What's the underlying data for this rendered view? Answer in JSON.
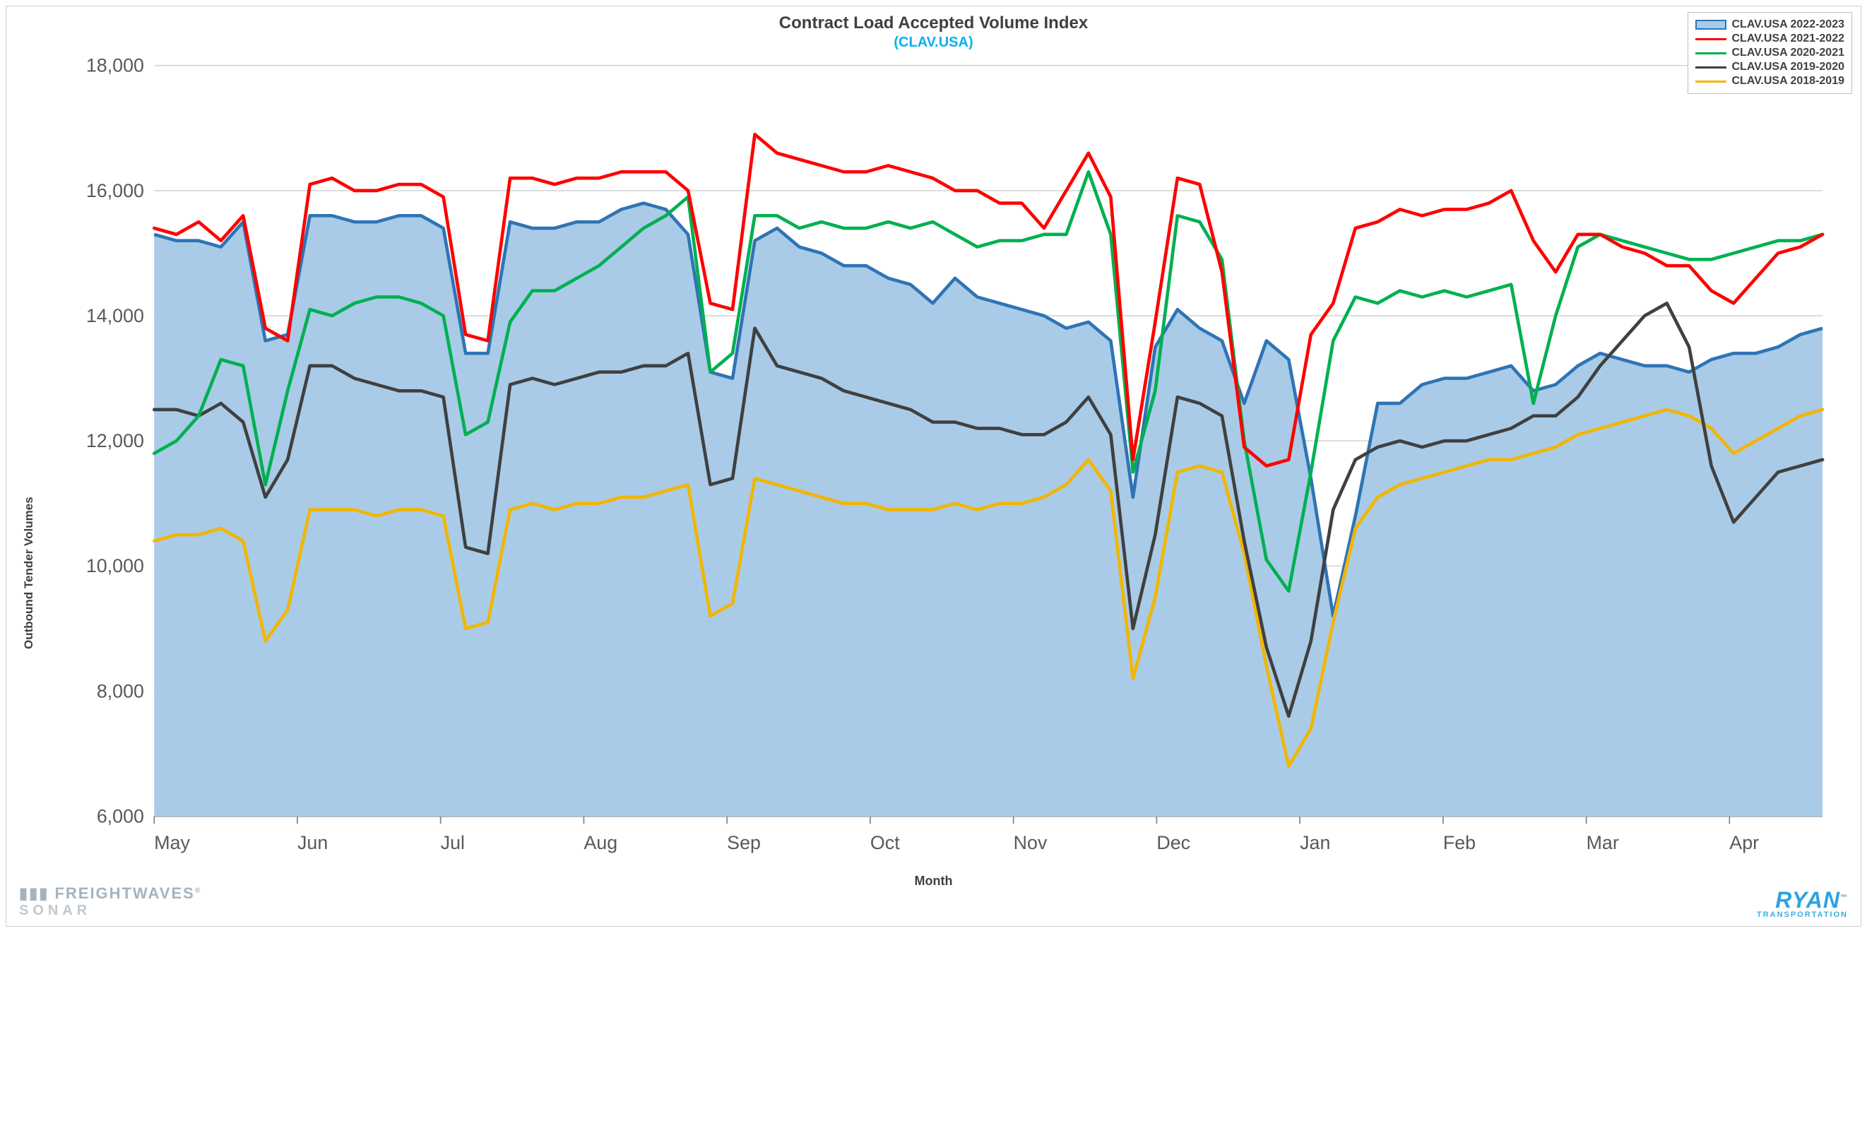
{
  "chart": {
    "type": "line",
    "title": "Contract Load Accepted Volume Index",
    "subtitle": "(CLAV.USA)",
    "title_fontsize": 24,
    "subtitle_fontsize": 20,
    "subtitle_color": "#00b0f0",
    "ylabel": "Outbound Tender Volumes",
    "xlabel": "Month",
    "background_color": "#ffffff",
    "plot_border_color": "#d0d0d0",
    "grid_color": "#d9d9d9",
    "ylim": [
      6000,
      18000
    ],
    "yticks": [
      6000,
      8000,
      10000,
      12000,
      14000,
      16000,
      18000
    ],
    "ytick_labels": [
      "6,000",
      "8,000",
      "10,000",
      "12,000",
      "14,000",
      "16,000",
      "18,000"
    ],
    "x_categories": [
      "May",
      "Jun",
      "Jul",
      "Aug",
      "Sep",
      "Oct",
      "Nov",
      "Dec",
      "Jan",
      "Feb",
      "Mar",
      "Apr"
    ],
    "line_width": 2.6,
    "legend": {
      "position": "top-right",
      "border_color": "#bfbfbf",
      "items": [
        {
          "label": "CLAV.USA 2022-2023",
          "type": "area",
          "stroke": "#2e74b5",
          "fill": "#a9cbe8"
        },
        {
          "label": "CLAV.USA 2021-2022",
          "type": "line",
          "stroke": "#ff0000"
        },
        {
          "label": "CLAV.USA 2020-2021",
          "type": "line",
          "stroke": "#00b050"
        },
        {
          "label": "CLAV.USA 2019-2020",
          "type": "line",
          "stroke": "#404040"
        },
        {
          "label": "CLAV.USA 2018-2019",
          "type": "line",
          "stroke": "#f2b600"
        }
      ]
    },
    "series": [
      {
        "name": "CLAV.USA 2022-2023",
        "type": "area",
        "stroke": "#2e74b5",
        "fill": "#a9cbe8",
        "fill_opacity": 1,
        "values": [
          15300,
          15200,
          15200,
          15100,
          15500,
          13600,
          13700,
          15600,
          15600,
          15500,
          15500,
          15600,
          15600,
          15400,
          13400,
          13400,
          15500,
          15400,
          15400,
          15500,
          15500,
          15700,
          15800,
          15700,
          15300,
          13100,
          13000,
          15200,
          15400,
          15100,
          15000,
          14800,
          14800,
          14600,
          14500,
          14200,
          14600,
          14300,
          14200,
          14100,
          14000,
          13800,
          13900,
          13600,
          11100,
          13500,
          14100,
          13800,
          13600,
          12600,
          13600,
          13300,
          11400,
          9200,
          10800,
          12600,
          12600,
          12900,
          13000,
          13000,
          13100,
          13200,
          12800,
          12900,
          13200,
          13400,
          13300,
          13200,
          13200,
          13100,
          13300,
          13400,
          13400,
          13500,
          13700,
          13800
        ]
      },
      {
        "name": "CLAV.USA 2021-2022",
        "type": "line",
        "stroke": "#ff0000",
        "values": [
          15400,
          15300,
          15500,
          15200,
          15600,
          13800,
          13600,
          16100,
          16200,
          16000,
          16000,
          16100,
          16100,
          15900,
          13700,
          13600,
          16200,
          16200,
          16100,
          16200,
          16200,
          16300,
          16300,
          16300,
          16000,
          14200,
          14100,
          16900,
          16600,
          16500,
          16400,
          16300,
          16300,
          16400,
          16300,
          16200,
          16000,
          16000,
          15800,
          15800,
          15400,
          16000,
          16600,
          15900,
          11700,
          13900,
          16200,
          16100,
          14700,
          11900,
          11600,
          11700,
          13700,
          14200,
          15400,
          15500,
          15700,
          15600,
          15700,
          15700,
          15800,
          16000,
          15200,
          14700,
          15300,
          15300,
          15100,
          15000,
          14800,
          14800,
          14400,
          14200,
          14600,
          15000,
          15100,
          15300
        ]
      },
      {
        "name": "CLAV.USA 2020-2021",
        "type": "line",
        "stroke": "#00b050",
        "values": [
          11800,
          12000,
          12400,
          13300,
          13200,
          11300,
          12800,
          14100,
          14000,
          14200,
          14300,
          14300,
          14200,
          14000,
          12100,
          12300,
          13900,
          14400,
          14400,
          14600,
          14800,
          15100,
          15400,
          15600,
          15900,
          13100,
          13400,
          15600,
          15600,
          15400,
          15500,
          15400,
          15400,
          15500,
          15400,
          15500,
          15300,
          15100,
          15200,
          15200,
          15300,
          15300,
          16300,
          15300,
          11500,
          12800,
          15600,
          15500,
          14900,
          12000,
          10100,
          9600,
          11500,
          13600,
          14300,
          14200,
          14400,
          14300,
          14400,
          14300,
          14400,
          14500,
          12600,
          14000,
          15100,
          15300,
          15200,
          15100,
          15000,
          14900,
          14900,
          15000,
          15100,
          15200,
          15200,
          15300
        ]
      },
      {
        "name": "CLAV.USA 2019-2020",
        "type": "line",
        "stroke": "#404040",
        "values": [
          12500,
          12500,
          12400,
          12600,
          12300,
          11100,
          11700,
          13200,
          13200,
          13000,
          12900,
          12800,
          12800,
          12700,
          10300,
          10200,
          12900,
          13000,
          12900,
          13000,
          13100,
          13100,
          13200,
          13200,
          13400,
          11300,
          11400,
          13800,
          13200,
          13100,
          13000,
          12800,
          12700,
          12600,
          12500,
          12300,
          12300,
          12200,
          12200,
          12100,
          12100,
          12300,
          12700,
          12100,
          9000,
          10500,
          12700,
          12600,
          12400,
          10400,
          8700,
          7600,
          8800,
          10900,
          11700,
          11900,
          12000,
          11900,
          12000,
          12000,
          12100,
          12200,
          12400,
          12400,
          12700,
          13200,
          13600,
          14000,
          14200,
          13500,
          11600,
          10700,
          11100,
          11500,
          11600,
          11700
        ]
      },
      {
        "name": "CLAV.USA 2018-2019",
        "type": "line",
        "stroke": "#f2b600",
        "values": [
          10400,
          10500,
          10500,
          10600,
          10400,
          8800,
          9300,
          10900,
          10900,
          10900,
          10800,
          10900,
          10900,
          10800,
          9000,
          9100,
          10900,
          11000,
          10900,
          11000,
          11000,
          11100,
          11100,
          11200,
          11300,
          9200,
          9400,
          11400,
          11300,
          11200,
          11100,
          11000,
          11000,
          10900,
          10900,
          10900,
          11000,
          10900,
          11000,
          11000,
          11100,
          11300,
          11700,
          11200,
          8200,
          9500,
          11500,
          11600,
          11500,
          10200,
          8400,
          6800,
          7400,
          9100,
          10600,
          11100,
          11300,
          11400,
          11500,
          11600,
          11700,
          11700,
          11800,
          11900,
          12100,
          12200,
          12300,
          12400,
          12500,
          12400,
          12200,
          11800,
          12000,
          12200,
          12400,
          12500
        ]
      }
    ]
  },
  "logos": {
    "left_line1": "FREIGHTWAVES",
    "left_line2": "SONAR",
    "right_line1": "RYAN",
    "right_line2": "TRANSPORTATION"
  }
}
